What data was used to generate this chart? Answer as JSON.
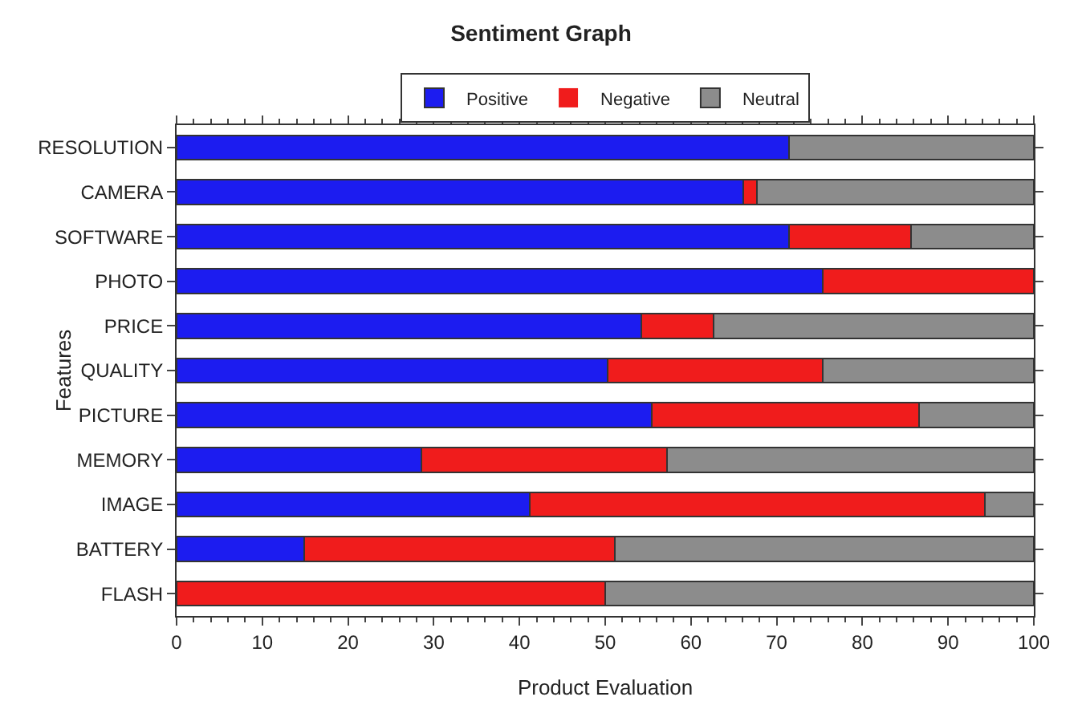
{
  "chart_data": {
    "type": "bar",
    "title": "Sentiment Graph",
    "xlabel": "Product Evaluation",
    "ylabel": "Features",
    "orientation": "horizontal",
    "stacked": true,
    "categories": [
      "RESOLUTION",
      "CAMERA",
      "SOFTWARE",
      "PHOTO",
      "PRICE",
      "QUALITY",
      "PICTURE",
      "MEMORY",
      "IMAGE",
      "BATTERY",
      "FLASH"
    ],
    "series": [
      {
        "name": "Positive",
        "color": "#1c1cf0",
        "values": [
          71.4,
          66.1,
          71.4,
          75.4,
          54.2,
          50.3,
          55.4,
          28.6,
          41.2,
          14.9,
          0
        ]
      },
      {
        "name": "Negative",
        "color": "#f01c1c",
        "values": [
          0,
          1.6,
          14.3,
          24.6,
          8.4,
          25.1,
          31.2,
          28.6,
          53.1,
          36.2,
          50
        ]
      },
      {
        "name": "Neutral",
        "color": "#8c8c8c",
        "values": [
          28.6,
          32.3,
          14.3,
          0,
          37.4,
          24.6,
          13.4,
          42.8,
          5.7,
          48.9,
          50
        ]
      }
    ],
    "xlim": [
      0,
      100
    ],
    "xticks": [
      0,
      10,
      20,
      30,
      40,
      50,
      60,
      70,
      80,
      90,
      100
    ],
    "grid": false,
    "legend": "top"
  }
}
